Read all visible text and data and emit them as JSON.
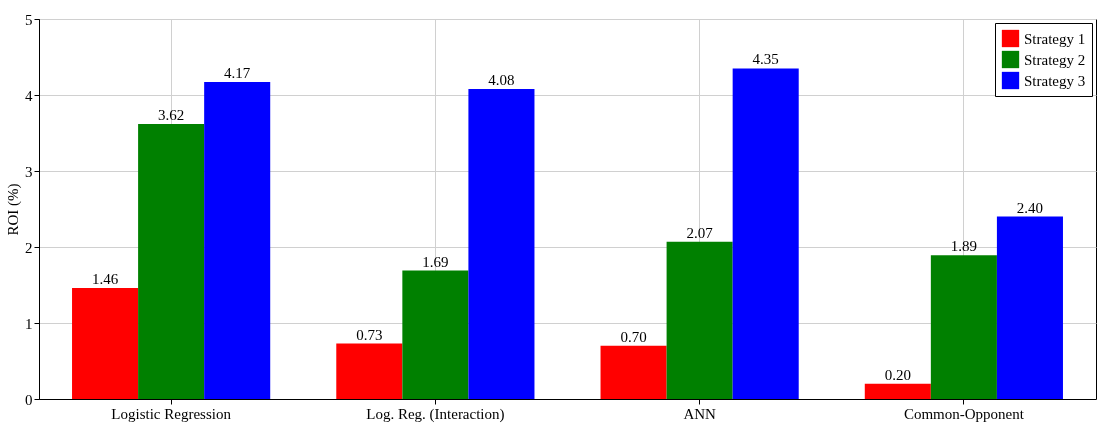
{
  "chart_data": {
    "type": "bar",
    "ylabel": "ROI (%)",
    "categories": [
      "Logistic Regression",
      "Log. Reg. (Interaction)",
      "ANN",
      "Common-Opponent"
    ],
    "series": [
      {
        "name": "Strategy 1",
        "color": "#ff0000",
        "values": [
          1.46,
          0.73,
          0.7,
          0.2
        ],
        "value_labels": [
          "1.46",
          "0.73",
          "0.70",
          "0.20"
        ]
      },
      {
        "name": "Strategy 2",
        "color": "#008000",
        "values": [
          3.62,
          1.69,
          2.07,
          1.89
        ],
        "value_labels": [
          "3.62",
          "1.69",
          "2.07",
          "1.89"
        ]
      },
      {
        "name": "Strategy 3",
        "color": "#0000ff",
        "values": [
          4.17,
          4.08,
          4.35,
          2.4
        ],
        "value_labels": [
          "4.17",
          "4.08",
          "4.35",
          "2.40"
        ]
      }
    ],
    "ylim": [
      0,
      5
    ],
    "yticks": [
      0,
      1,
      2,
      3,
      4,
      5
    ],
    "grid": true,
    "legend": "top right"
  }
}
